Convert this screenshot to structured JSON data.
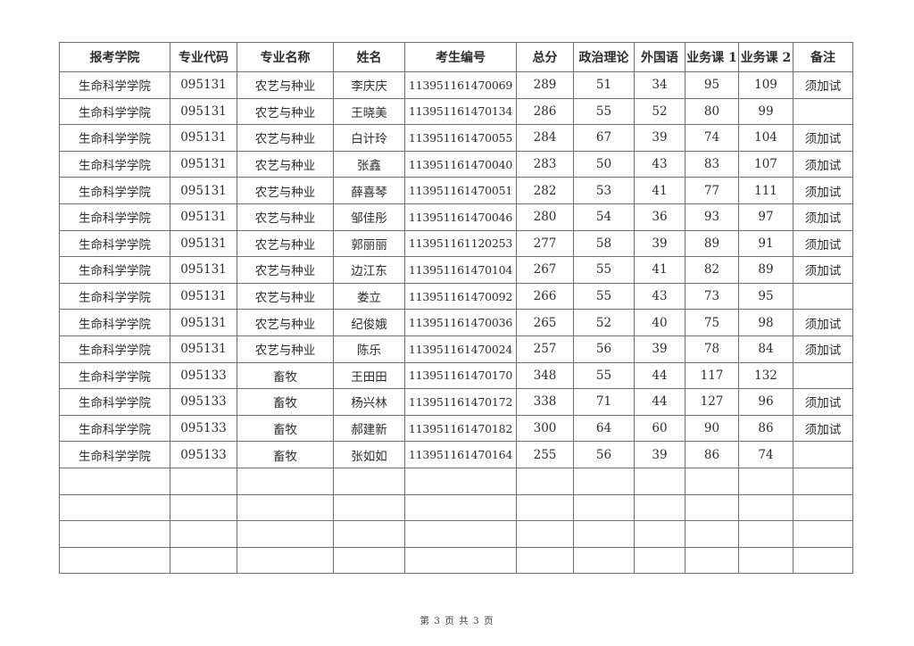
{
  "page": {
    "footer": "第 3 页 共 3 页"
  },
  "table": {
    "headers": [
      "报考学院",
      "专业代码",
      "专业名称",
      "姓名",
      "考生编号",
      "总分",
      "政治理论",
      "外国语",
      "业务课 1",
      "业务课 2",
      "备注"
    ],
    "rows": [
      [
        "生命科学学院",
        "095131",
        "农艺与种业",
        "李庆庆",
        "113951161470069",
        "289",
        "51",
        "34",
        "95",
        "109",
        "须加试"
      ],
      [
        "生命科学学院",
        "095131",
        "农艺与种业",
        "王晓美",
        "113951161470134",
        "286",
        "55",
        "52",
        "80",
        "99",
        ""
      ],
      [
        "生命科学学院",
        "095131",
        "农艺与种业",
        "白计玲",
        "113951161470055",
        "284",
        "67",
        "39",
        "74",
        "104",
        "须加试"
      ],
      [
        "生命科学学院",
        "095131",
        "农艺与种业",
        "张鑫",
        "113951161470040",
        "283",
        "50",
        "43",
        "83",
        "107",
        "须加试"
      ],
      [
        "生命科学学院",
        "095131",
        "农艺与种业",
        "薛喜琴",
        "113951161470051",
        "282",
        "53",
        "41",
        "77",
        "111",
        "须加试"
      ],
      [
        "生命科学学院",
        "095131",
        "农艺与种业",
        "邹佳彤",
        "113951161470046",
        "280",
        "54",
        "36",
        "93",
        "97",
        "须加试"
      ],
      [
        "生命科学学院",
        "095131",
        "农艺与种业",
        "郭丽丽",
        "113951161120253",
        "277",
        "58",
        "39",
        "89",
        "91",
        "须加试"
      ],
      [
        "生命科学学院",
        "095131",
        "农艺与种业",
        "边江东",
        "113951161470104",
        "267",
        "55",
        "41",
        "82",
        "89",
        "须加试"
      ],
      [
        "生命科学学院",
        "095131",
        "农艺与种业",
        "娄立",
        "113951161470092",
        "266",
        "55",
        "43",
        "73",
        "95",
        ""
      ],
      [
        "生命科学学院",
        "095131",
        "农艺与种业",
        "纪俊娥",
        "113951161470036",
        "265",
        "52",
        "40",
        "75",
        "98",
        "须加试"
      ],
      [
        "生命科学学院",
        "095131",
        "农艺与种业",
        "陈乐",
        "113951161470024",
        "257",
        "56",
        "39",
        "78",
        "84",
        "须加试"
      ],
      [
        "生命科学学院",
        "095133",
        "畜牧",
        "王田田",
        "113951161470170",
        "348",
        "55",
        "44",
        "117",
        "132",
        ""
      ],
      [
        "生命科学学院",
        "095133",
        "畜牧",
        "杨兴林",
        "113951161470172",
        "338",
        "71",
        "44",
        "127",
        "96",
        "须加试"
      ],
      [
        "生命科学学院",
        "095133",
        "畜牧",
        "郝建新",
        "113951161470182",
        "300",
        "64",
        "60",
        "90",
        "86",
        "须加试"
      ],
      [
        "生命科学学院",
        "095133",
        "畜牧",
        "张如如",
        "113951161470164",
        "255",
        "56",
        "39",
        "86",
        "74",
        ""
      ]
    ],
    "empty_rows": 4
  }
}
